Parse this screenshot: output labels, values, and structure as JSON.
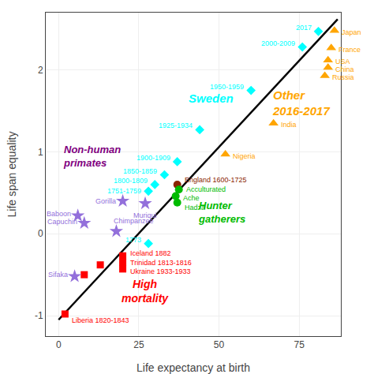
{
  "chart_data": {
    "type": "scatter",
    "xlabel": "Life expectancy at birth",
    "ylabel": "Life span equality",
    "xlim": [
      -4,
      88
    ],
    "ylim": [
      -1.25,
      2.7
    ],
    "xticks": [
      0,
      25,
      50,
      75
    ],
    "yticks": [
      -1,
      0,
      1,
      2
    ],
    "grid": true,
    "series": [
      {
        "type": "line",
        "color": "black",
        "line_style": "solid",
        "x": [
          0,
          87
        ],
        "values": [
          -1.05,
          2.62
        ]
      },
      {
        "marker": "diamond",
        "color": "cyan",
        "x": [
          37,
          44,
          60,
          76,
          81
        ],
        "values": [
          0.88,
          1.27,
          1.75,
          2.28,
          2.47
        ],
        "labels": [
          "1900-1909",
          "1925-1934",
          "1950-1959",
          "2000-2009",
          "2017"
        ]
      },
      {
        "marker": "triangle",
        "color": "orange",
        "x": [
          67,
          83,
          84,
          84,
          85,
          86,
          52
        ],
        "values": [
          1.35,
          1.93,
          2.03,
          2.12,
          2.27,
          2.48,
          0.97
        ],
        "labels": [
          "India",
          "Russia",
          "China",
          "USA",
          "France",
          "Japan",
          "Nigeria"
        ]
      },
      {
        "marker": "square",
        "color": "red",
        "x": [
          2,
          8,
          13,
          20,
          20,
          20
        ],
        "values": [
          -0.98,
          -0.5,
          -0.38,
          -0.27,
          -0.35,
          -0.43
        ],
        "labels": [
          "Liberia 1820-1843",
          null,
          null,
          "Iceland 1882",
          "Trinidad 1813-1816",
          "Ukraine 1933-1933"
        ]
      },
      {
        "marker": "star",
        "color": "mediumpurple",
        "x": [
          6,
          8,
          18,
          20,
          27,
          5
        ],
        "values": [
          0.22,
          0.13,
          0.03,
          0.4,
          0.37,
          -0.52
        ],
        "labels": [
          "Baboon",
          "Capuchin",
          "Chimpanzee",
          "Gorilla",
          "Muriqui",
          "Sifaka"
        ]
      },
      {
        "marker": "circle",
        "colors": [
          "#8B2500",
          "#00BB00",
          "#00BB00",
          "#00BB00"
        ],
        "x": [
          37,
          37.5,
          36.5,
          37
        ],
        "values": [
          0.6,
          0.54,
          0.46,
          0.38
        ],
        "labels": [
          "England 1600-1725",
          "Acculturated",
          "Ache",
          "Hadza"
        ]
      },
      {
        "marker": "diamond",
        "color": "cyan",
        "x": [
          33,
          30,
          28
        ],
        "values": [
          0.72,
          0.6,
          0.52
        ],
        "labels": [
          "1850-1859",
          "1800-1809",
          "1751-1759"
        ]
      },
      {
        "marker": "diamond",
        "color": "cyan",
        "x": [
          28
        ],
        "values": [
          -0.12
        ],
        "labels": [
          "1773"
        ]
      }
    ],
    "annotations": [
      {
        "text": "Sweden",
        "x": 40,
        "y": 1.65,
        "color": "cyan"
      },
      {
        "text": "Other\n2016-2017",
        "x": 66,
        "y": 1.6,
        "color": "orange"
      },
      {
        "text": "Non-human\nprimates",
        "x": 1,
        "y": 0.95,
        "color": "purple"
      },
      {
        "text": "Hunter\ngatherers",
        "x": 43,
        "y": 0.26,
        "color": "#00BB00"
      },
      {
        "text": "High\nmortality",
        "x": 27,
        "y": -0.7,
        "color": "red"
      }
    ]
  }
}
